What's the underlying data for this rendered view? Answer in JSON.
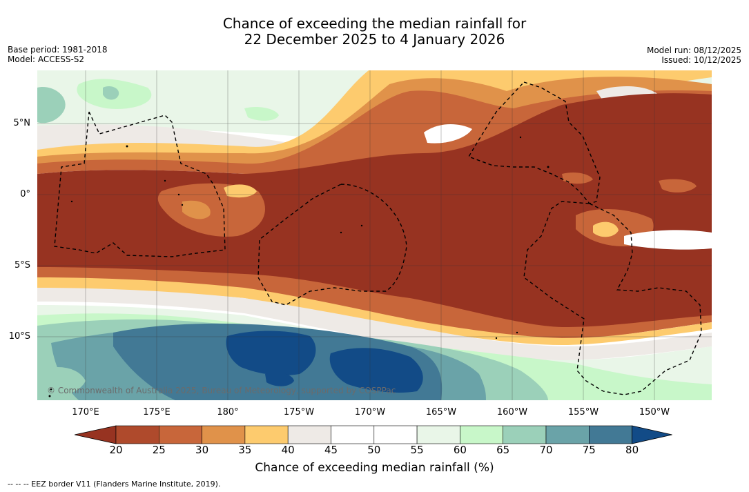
{
  "title": {
    "line1": "Chance of exceeding the median rainfall for",
    "line2": "22 December 2025 to 4 January 2026"
  },
  "meta_left": {
    "base_period": "Base period: 1981-2018",
    "model": "Model: ACCESS-S2"
  },
  "meta_right": {
    "model_run": "Model run: 08/12/2025",
    "issued": "Issued: 10/12/2025"
  },
  "map": {
    "lat_ticks": [
      "5°N",
      "0°",
      "5°S",
      "10°S"
    ],
    "lon_ticks": [
      "170°E",
      "175°E",
      "180°",
      "175°W",
      "170°W",
      "165°W",
      "160°W",
      "155°W",
      "150°W"
    ],
    "copyright": "© Commonwealth of Australia 2025, Bureau of Meteorology, supported by COSPPac"
  },
  "colorbar": {
    "ticks": [
      "20",
      "25",
      "30",
      "35",
      "40",
      "45",
      "50",
      "55",
      "60",
      "65",
      "70",
      "75",
      "80"
    ],
    "colors": [
      "#973321",
      "#af4a2c",
      "#c8663a",
      "#e0924a",
      "#fdcb6e",
      "#eeeae6",
      "#ffffff",
      "#ffffff",
      "#e9f6e8",
      "#c8f7c9",
      "#9bd0b9",
      "#6aa3a8",
      "#427995",
      "#124b87"
    ],
    "label": "Chance of exceeding median rainfall (%)"
  },
  "footnote": "--  --  -- EEZ border V11 (Flanders Marine Institute, 2019)."
}
